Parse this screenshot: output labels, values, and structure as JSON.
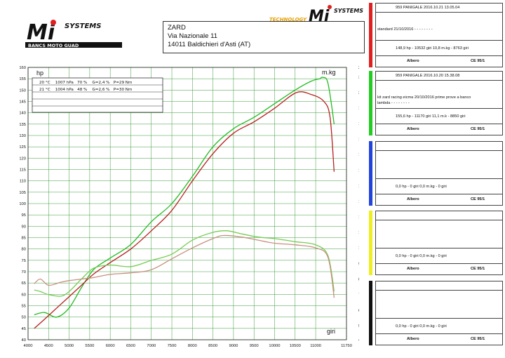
{
  "branding": {
    "logo_left": {
      "main": "Mi",
      "sub": "SYSTEMS",
      "tagline": "BANCS MOTO GUAD"
    },
    "logo_right": {
      "prefix": "TECHNOLOGY",
      "main": "Mi",
      "sub": "SYSTEMS"
    }
  },
  "address": {
    "line1": "ZARD",
    "line2": "Via Nazionale 11",
    "line3": "14011 Baldichieri d'Asti (AT)"
  },
  "conditions": {
    "header": "hp",
    "rows": [
      "20 °C    1007 hPa   70 %    G=2,4 %   P=29 Nm",
      "21 °C    1004 hPa   48 %    G=2,6 %   P=30 Nm"
    ]
  },
  "panels": [
    {
      "color": "#e02020",
      "title": "959  PANIGALE   2016.10.21  13.05.04",
      "note": "standard 21/10/2016  - - - - - - - -",
      "note2": "",
      "result": "148,9 hp - 10532 giri      10,8 m.kg - 8763 giri",
      "footer_left": "Albero",
      "footer_right": "CE 95/1"
    },
    {
      "color": "#22cc22",
      "title": "959  PANIGALE   2016.10.20  15.38.08",
      "note": "kit zard racing eicma 20/10/2016 prime prove a banco",
      "note2": "lambda - - - - - - - -",
      "result": "155,6 hp - 11170 giri      11,1 m.k - 8850 giri",
      "footer_left": "Albero",
      "footer_right": "CE 95/1"
    },
    {
      "color": "#2244dd",
      "title": "",
      "note": "",
      "note2": "",
      "result": "0,0 hp - 0 giri      0,0 m.kg - 0 giri",
      "footer_left": "Albero",
      "footer_right": "CE 95/1"
    },
    {
      "color": "#eeee22",
      "title": "",
      "note": "",
      "note2": "",
      "result": "0,0 hp - 0 giri      0,0 m.kg - 0 giri",
      "footer_left": "Albero",
      "footer_right": "CE 95/1"
    },
    {
      "color": "#111111",
      "title": "",
      "note": "",
      "note2": "",
      "result": "0,0 hp - 0 giri      0,0 m.kg - 0 giri",
      "footer_left": "Albero",
      "footer_right": "CE 95/1"
    }
  ],
  "chart_data": {
    "type": "line",
    "xlabel": "giri",
    "ylabel_left": "hp",
    "ylabel_right": "m.kg",
    "xlim": [
      4000,
      11750
    ],
    "ylim_left": [
      40,
      160
    ],
    "ylim_right": [
      4.1,
      21.6
    ],
    "x_ticks": [
      4000,
      4500,
      5000,
      5500,
      6000,
      6500,
      7000,
      7500,
      8000,
      8500,
      9000,
      9500,
      10000,
      10500,
      11000,
      11750
    ],
    "y_left_ticks": [
      40,
      45,
      50,
      55,
      60,
      65,
      70,
      75,
      80,
      85,
      90,
      95,
      100,
      105,
      110,
      115,
      120,
      125,
      130,
      135,
      140,
      145,
      150,
      155,
      160
    ],
    "y_right_ticks": [
      4.1,
      5,
      6,
      7,
      8,
      9,
      10,
      11,
      12,
      13,
      14,
      15,
      16,
      17,
      18,
      19,
      20,
      21,
      21.6
    ],
    "grid": true,
    "series": [
      {
        "color": "#22bb22",
        "axis": "left",
        "kind": "power",
        "x": [
          4150,
          4400,
          4700,
          5000,
          5300,
          5600,
          6000,
          6500,
          7000,
          7500,
          8000,
          8500,
          9000,
          9500,
          10000,
          10500,
          10900,
          11100,
          11170,
          11300,
          11450
        ],
        "y": [
          51,
          52,
          50,
          54,
          63,
          71,
          76,
          82,
          92,
          100,
          112,
          125,
          133,
          138,
          144,
          150,
          154,
          155,
          155.6,
          153,
          135
        ]
      },
      {
        "color": "#b82020",
        "axis": "left",
        "kind": "power",
        "x": [
          4150,
          4400,
          4700,
          5000,
          5300,
          5600,
          6000,
          6500,
          7000,
          7500,
          8000,
          8500,
          9000,
          9500,
          10000,
          10532,
          10900,
          11200,
          11350,
          11450
        ],
        "y": [
          45,
          49,
          54,
          59,
          64,
          69,
          74,
          80,
          88,
          97,
          110,
          122,
          131,
          136,
          142,
          148.9,
          148,
          145,
          138,
          114
        ]
      },
      {
        "color": "#77cc55",
        "axis": "right",
        "kind": "torque",
        "x": [
          4150,
          4300,
          4500,
          4800,
          5000,
          5300,
          5600,
          6000,
          6500,
          7000,
          7500,
          8000,
          8500,
          8850,
          9200,
          9600,
          10000,
          10500,
          11000,
          11300,
          11450
        ],
        "y": [
          7.3,
          7.2,
          7.0,
          6.9,
          7.2,
          8.0,
          8.7,
          8.9,
          8.8,
          9.2,
          9.6,
          10.5,
          11.0,
          11.1,
          10.9,
          10.7,
          10.6,
          10.4,
          10.2,
          9.5,
          7.2
        ]
      },
      {
        "color": "#c79080",
        "axis": "right",
        "kind": "torque",
        "x": [
          4150,
          4300,
          4500,
          4800,
          5000,
          5300,
          5600,
          6000,
          6500,
          7000,
          7500,
          8000,
          8500,
          8763,
          9200,
          9600,
          10000,
          10500,
          11000,
          11300,
          11450
        ],
        "y": [
          7.7,
          8.0,
          7.6,
          7.8,
          7.9,
          8.0,
          8.1,
          8.3,
          8.4,
          8.6,
          9.3,
          10.0,
          10.6,
          10.8,
          10.7,
          10.5,
          10.3,
          10.2,
          10.0,
          9.4,
          6.8
        ]
      }
    ]
  }
}
